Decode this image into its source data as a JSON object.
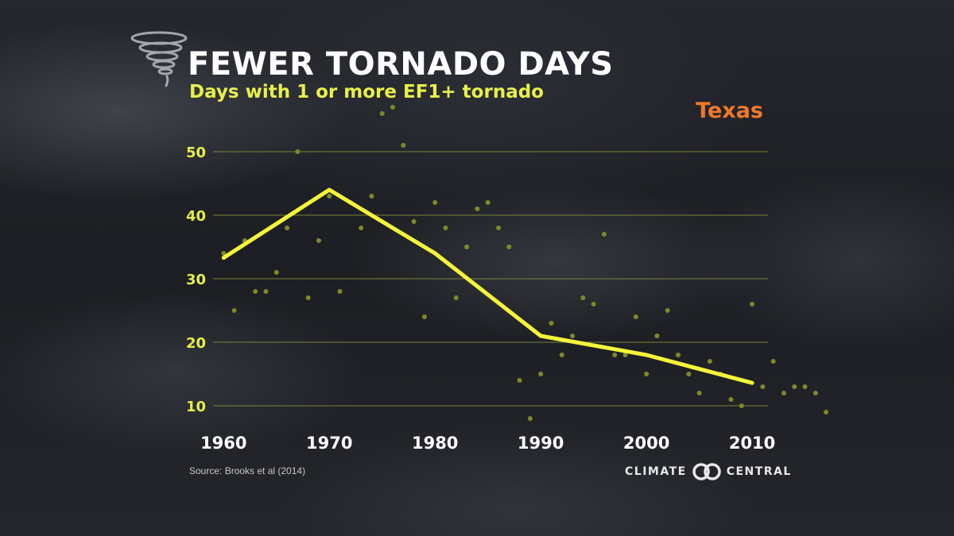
{
  "header": {
    "title": "FEWER TORNADO DAYS",
    "subtitle": "Days with 1 or more EF1+ tornado",
    "region": "Texas"
  },
  "footer": {
    "source": "Source: Brooks et al (2014)",
    "brand_left": "CLIMATE",
    "brand_right": "CENTRAL"
  },
  "colors": {
    "accent_yellow": "#f5f53a",
    "dot_color": "#7d8a2c",
    "region_orange": "#f0782a",
    "grid_color": "#9aa23c"
  },
  "chart_data": {
    "type": "line",
    "title": "FEWER TORNADO DAYS",
    "subtitle": "Days with 1 or more EF1+ tornado",
    "xlabel": "",
    "ylabel": "",
    "xlim": [
      1959,
      2011.5
    ],
    "ylim": [
      7,
      57
    ],
    "x_ticks": [
      1960,
      1970,
      1980,
      1990,
      2000,
      2010
    ],
    "y_ticks": [
      10,
      20,
      30,
      40,
      50
    ],
    "grid": "horizontal",
    "series": [
      {
        "name": "",
        "style": "scatter",
        "points": [
          [
            1960,
            34
          ],
          [
            1961,
            25
          ],
          [
            1962,
            36
          ],
          [
            1963,
            28
          ],
          [
            1964,
            28
          ],
          [
            1965,
            31
          ],
          [
            1966,
            38
          ],
          [
            1967,
            50
          ],
          [
            1968,
            27
          ],
          [
            1969,
            36
          ],
          [
            1970,
            43
          ],
          [
            1971,
            28
          ],
          [
            1972,
            42
          ],
          [
            1973,
            38
          ],
          [
            1974,
            43
          ],
          [
            1975,
            56
          ],
          [
            1976,
            57
          ],
          [
            1977,
            51
          ],
          [
            1978,
            39
          ],
          [
            1979,
            24
          ],
          [
            1980,
            42
          ],
          [
            1981,
            38
          ],
          [
            1982,
            27
          ],
          [
            1983,
            35
          ],
          [
            1984,
            41
          ],
          [
            1985,
            42
          ],
          [
            1986,
            38
          ],
          [
            1987,
            35
          ],
          [
            1988,
            14
          ],
          [
            1989,
            8
          ],
          [
            1990,
            15
          ],
          [
            1991,
            23
          ],
          [
            1992,
            18
          ],
          [
            1993,
            21
          ],
          [
            1994,
            27
          ],
          [
            1995,
            26
          ],
          [
            1996,
            37
          ],
          [
            1997,
            18
          ],
          [
            1998,
            18
          ],
          [
            1999,
            24
          ],
          [
            2000,
            15
          ],
          [
            2001,
            21
          ],
          [
            2002,
            25
          ],
          [
            2003,
            18
          ],
          [
            2004,
            15
          ],
          [
            2005,
            12
          ],
          [
            2006,
            17
          ],
          [
            2007,
            15
          ],
          [
            2008,
            11
          ],
          [
            2009,
            10
          ],
          [
            2010,
            26
          ],
          [
            2011,
            13
          ],
          [
            2012,
            17
          ],
          [
            2013,
            12
          ],
          [
            2014,
            13
          ],
          [
            2015,
            13
          ],
          [
            2016,
            12
          ],
          [
            2017,
            9
          ]
        ]
      },
      {
        "name": "",
        "style": "line",
        "points": [
          [
            1960,
            33.3
          ],
          [
            1970,
            44
          ],
          [
            1980,
            34
          ],
          [
            1990,
            21
          ],
          [
            2000,
            18
          ],
          [
            2010,
            13.6
          ]
        ]
      }
    ]
  }
}
